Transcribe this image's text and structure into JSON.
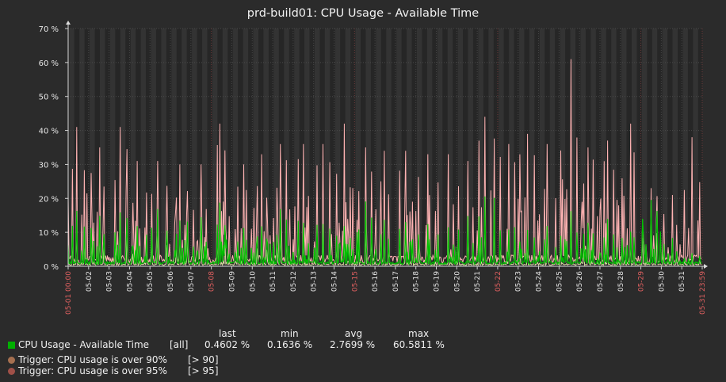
{
  "chart_data": {
    "type": "line",
    "title": "prd-build01: CPU Usage - Available Time",
    "y_ticks": [
      "0 %",
      "10 %",
      "20 %",
      "30 %",
      "40 %",
      "50 %",
      "60 %",
      "70 %"
    ],
    "ylim": [
      0,
      70
    ],
    "x_ticks": [
      {
        "label": "05-01 00:00",
        "day": 0,
        "highlight": true
      },
      {
        "label": "05-02",
        "day": 1
      },
      {
        "label": "05-03",
        "day": 2
      },
      {
        "label": "05-04",
        "day": 3
      },
      {
        "label": "05-05",
        "day": 4
      },
      {
        "label": "05-06",
        "day": 5
      },
      {
        "label": "05-07",
        "day": 6
      },
      {
        "label": "05-08",
        "day": 7,
        "highlight": true
      },
      {
        "label": "05-09",
        "day": 8
      },
      {
        "label": "05-10",
        "day": 9
      },
      {
        "label": "05-11",
        "day": 10
      },
      {
        "label": "05-12",
        "day": 11
      },
      {
        "label": "05-13",
        "day": 12
      },
      {
        "label": "05-14",
        "day": 13
      },
      {
        "label": "05-15",
        "day": 14,
        "highlight": true
      },
      {
        "label": "05-16",
        "day": 15
      },
      {
        "label": "05-17",
        "day": 16
      },
      {
        "label": "05-18",
        "day": 17
      },
      {
        "label": "05-19",
        "day": 18
      },
      {
        "label": "05-20",
        "day": 19
      },
      {
        "label": "05-21",
        "day": 20
      },
      {
        "label": "05-22",
        "day": 21,
        "highlight": true
      },
      {
        "label": "05-23",
        "day": 22
      },
      {
        "label": "05-24",
        "day": 23
      },
      {
        "label": "05-25",
        "day": 24
      },
      {
        "label": "05-26",
        "day": 25
      },
      {
        "label": "05-27",
        "day": 26
      },
      {
        "label": "05-28",
        "day": 27
      },
      {
        "label": "05-29",
        "day": 28,
        "highlight": true
      },
      {
        "label": "05-30",
        "day": 29
      },
      {
        "label": "05-31",
        "day": 30
      },
      {
        "label": "05-31 23:59",
        "day": 31,
        "highlight": true
      }
    ],
    "grid": true,
    "colors": {
      "background": "#2b2b2b",
      "plot": "#262626",
      "band": "#333333",
      "avg": "#1aaf1a",
      "max": "#ffb3b3",
      "min": "#d8d8a0",
      "highlight": "#e06060",
      "trigger90": "#a67050",
      "trigger95": "#a05048"
    },
    "series": [
      {
        "name": "CPU Usage - Available Time",
        "color": "#00c000",
        "daily_peak_max": [
          41,
          35,
          41,
          31,
          31,
          30,
          30,
          42,
          30,
          33,
          36,
          36,
          36,
          42,
          35,
          34,
          34,
          33,
          33,
          31,
          44,
          36,
          39,
          36,
          61,
          35,
          37,
          42,
          23,
          21,
          38
        ],
        "daily_peak_avg": [
          18,
          17,
          17,
          14,
          18,
          18,
          15,
          19,
          13,
          16,
          17,
          16,
          16,
          16,
          23,
          16,
          16,
          16,
          16,
          15,
          24,
          14,
          12,
          13,
          18,
          14,
          14,
          14,
          24,
          9,
          5
        ]
      }
    ]
  },
  "legend": {
    "headers": {
      "last": "last",
      "min": "min",
      "avg": "avg",
      "max": "max"
    },
    "item": {
      "label": "CPU Usage - Available Time",
      "function": "[all]",
      "last": "0.4602 %",
      "min": "0.1636 %",
      "avg": "2.7699 %",
      "max": "60.5811 %",
      "color": "#00b000"
    },
    "triggers": [
      {
        "label": "Trigger: CPU usage is over 90%",
        "threshold": "[> 90]",
        "color": "#a67050"
      },
      {
        "label": "Trigger: CPU usage is over 95%",
        "threshold": "[> 95]",
        "color": "#a05048"
      }
    ]
  }
}
